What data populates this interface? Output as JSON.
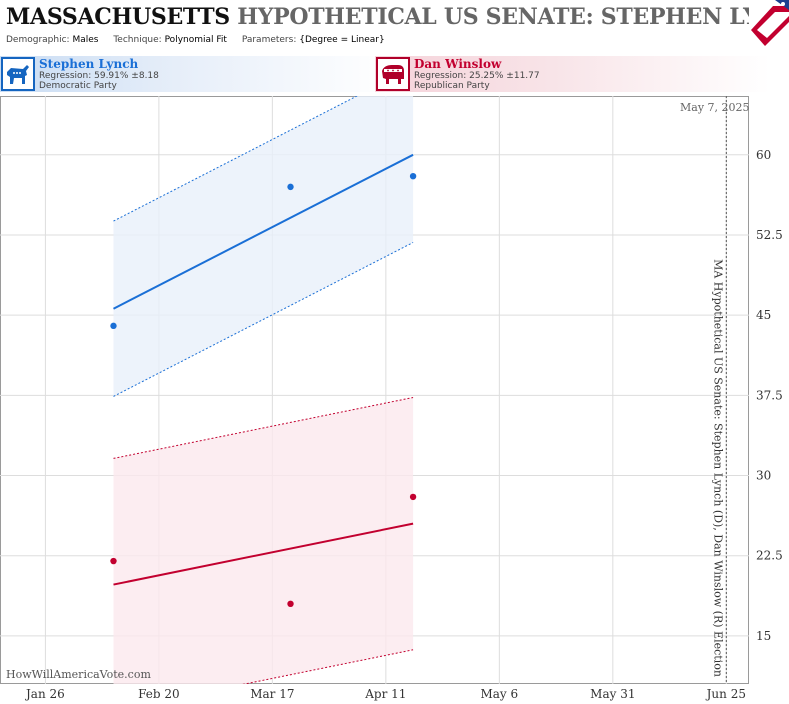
{
  "header": {
    "title_state": "MASSACHUSETTS",
    "title_rest": "HYPOTHETICAL US SENATE: STEPHEN LYNCH",
    "demographic_label": "Demographic:",
    "demographic": "Males",
    "technique_label": "Technique:",
    "technique": "Polynomial Fit",
    "parameters_label": "Parameters:",
    "parameters": "{Degree = Linear}"
  },
  "candidates": {
    "dem": {
      "name": "Stephen Lynch",
      "regression": "Regression: 59.91% ±8.18",
      "party": "Democratic Party",
      "icon": "donkey-icon",
      "color": "#1a6fd6"
    },
    "rep": {
      "name": "Dan Winslow",
      "regression": "Regression: 25.25% ±11.77",
      "party": "Republican Party",
      "icon": "elephant-icon",
      "color": "#c2002f"
    }
  },
  "annotations": {
    "date": "May 7, 2025",
    "side_label": "MA Hypothetical US Senate: Stephen Lynch (D), Dan Winslow (R) Election",
    "watermark": "HowWillAmericaVote.com"
  },
  "chart_data": {
    "type": "scatter",
    "x_ticks": [
      "Jan 26",
      "Feb 20",
      "Mar 17",
      "Apr 11",
      "May 6",
      "May 31",
      "Jun 25"
    ],
    "y_ticks": [
      15,
      22.5,
      30,
      37.5,
      45,
      52.5,
      60
    ],
    "xlim": [
      "2013-01-16",
      "2013-06-30"
    ],
    "ylim": [
      10.5,
      65.5
    ],
    "grid": true,
    "series": [
      {
        "name": "Stephen Lynch",
        "color": "#1a6fd6",
        "points": [
          {
            "x": "2013-02-10",
            "y": 44
          },
          {
            "x": "2013-03-21",
            "y": 57
          },
          {
            "x": "2013-04-17",
            "y": 58
          }
        ],
        "fit": [
          {
            "x": "2013-02-10",
            "y": 45.6
          },
          {
            "x": "2013-04-17",
            "y": 60.0
          }
        ],
        "upper": [
          {
            "x": "2013-02-10",
            "y": 53.8
          },
          {
            "x": "2013-04-17",
            "y": 68.2
          }
        ],
        "lower": [
          {
            "x": "2013-02-10",
            "y": 37.4
          },
          {
            "x": "2013-04-17",
            "y": 51.8
          }
        ]
      },
      {
        "name": "Dan Winslow",
        "color": "#c2002f",
        "points": [
          {
            "x": "2013-02-10",
            "y": 22
          },
          {
            "x": "2013-03-21",
            "y": 18
          },
          {
            "x": "2013-04-17",
            "y": 28
          }
        ],
        "fit": [
          {
            "x": "2013-02-10",
            "y": 19.8
          },
          {
            "x": "2013-04-17",
            "y": 25.5
          }
        ],
        "upper": [
          {
            "x": "2013-02-10",
            "y": 31.6
          },
          {
            "x": "2013-04-17",
            "y": 37.3
          }
        ],
        "lower": [
          {
            "x": "2013-02-10",
            "y": 8.0
          },
          {
            "x": "2013-04-17",
            "y": 13.7
          }
        ]
      }
    ],
    "election_date": "2013-06-25"
  }
}
